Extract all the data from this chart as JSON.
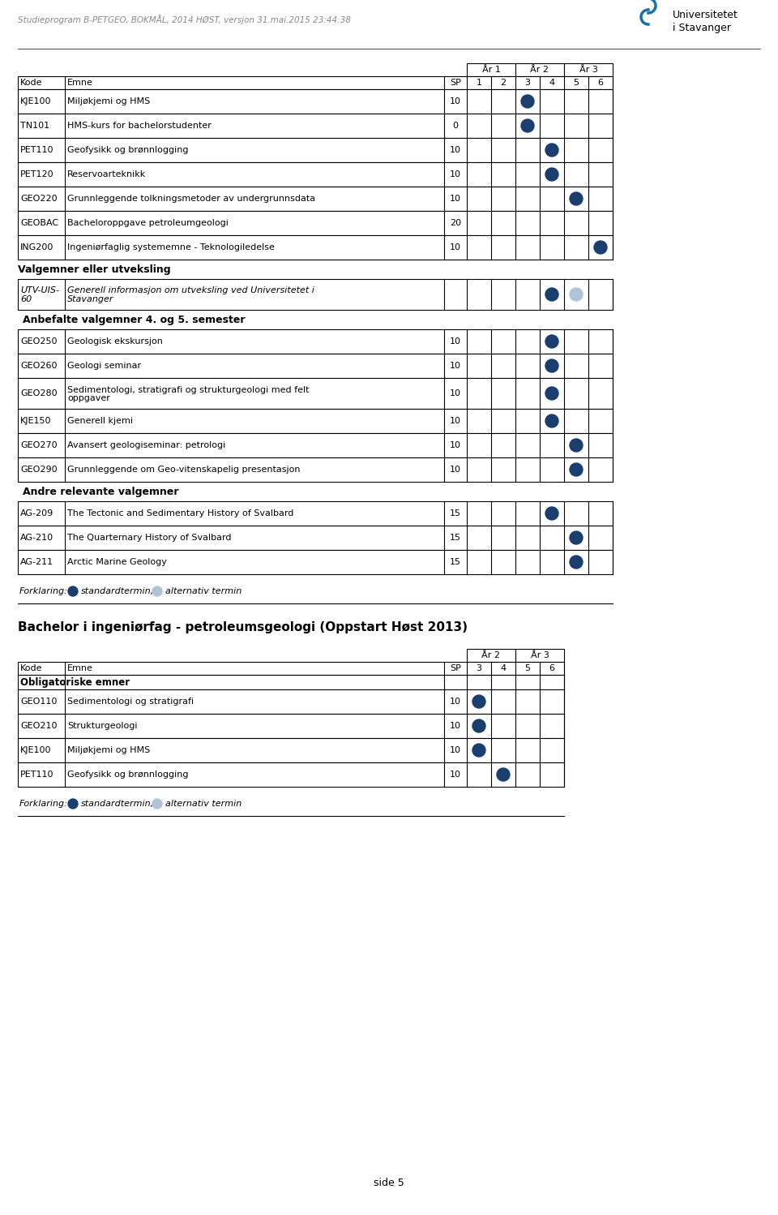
{
  "header_text": "Studieprogram B-PETGEO, BOKMÅL, 2014 HØST, versjon 31.mai.2015 23:44:38",
  "uni_name": "Universitetet\ni Stavanger",
  "page_label": "side 5",
  "col_semesters": [
    "1",
    "2",
    "3",
    "4",
    "5",
    "6"
  ],
  "col_semesters2": [
    "3",
    "4",
    "5",
    "6"
  ],
  "table1_rows": [
    {
      "kode": "KJE100",
      "emne": "Miljøkjemi og HMS",
      "sp": "10",
      "sem": [
        {
          "col": 3,
          "type": "filled"
        }
      ]
    },
    {
      "kode": "TN101",
      "emne": "HMS-kurs for bachelorstudenter",
      "sp": "0",
      "sem": [
        {
          "col": 3,
          "type": "filled"
        }
      ]
    },
    {
      "kode": "PET110",
      "emne": "Geofysikk og brønnlogging",
      "sp": "10",
      "sem": [
        {
          "col": 4,
          "type": "filled"
        }
      ]
    },
    {
      "kode": "PET120",
      "emne": "Reservoarteknikk",
      "sp": "10",
      "sem": [
        {
          "col": 4,
          "type": "filled"
        }
      ]
    },
    {
      "kode": "GEO220",
      "emne": "Grunnleggende tolkningsmetoder av undergrunnsdata",
      "sp": "10",
      "sem": [
        {
          "col": 5,
          "type": "filled"
        }
      ]
    },
    {
      "kode": "GEOBAC",
      "emne": "Bacheloroppgave petroleumgeologi",
      "sp": "20",
      "sem": []
    },
    {
      "kode": "ING200",
      "emne": "Ingeniørfaglig systememne - Teknologiledelse",
      "sp": "10",
      "sem": [
        {
          "col": 6,
          "type": "filled"
        }
      ]
    }
  ],
  "utveksling_rows": [
    {
      "kode": "UTV-UIS-\n60",
      "emne": "Generell informasjon om utveksling ved Universitetet i\nStavanger",
      "sp": "",
      "sem": [
        {
          "col": 4,
          "type": "filled"
        },
        {
          "col": 5,
          "type": "light"
        }
      ]
    }
  ],
  "anbefalte_rows": [
    {
      "kode": "GEO250",
      "emne": "Geologisk ekskursjon",
      "sp": "10",
      "sem": [
        {
          "col": 4,
          "type": "filled"
        }
      ]
    },
    {
      "kode": "GEO260",
      "emne": "Geologi seminar",
      "sp": "10",
      "sem": [
        {
          "col": 4,
          "type": "filled"
        }
      ]
    },
    {
      "kode": "GEO280",
      "emne": "Sedimentologi, stratigrafi og strukturgeologi med felt\noppgaver",
      "sp": "10",
      "sem": [
        {
          "col": 4,
          "type": "filled"
        }
      ]
    },
    {
      "kode": "KJE150",
      "emne": "Generell kjemi",
      "sp": "10",
      "sem": [
        {
          "col": 4,
          "type": "filled"
        }
      ]
    },
    {
      "kode": "GEO270",
      "emne": "Avansert geologiseminar: petrologi",
      "sp": "10",
      "sem": [
        {
          "col": 5,
          "type": "filled"
        }
      ]
    },
    {
      "kode": "GEO290",
      "emne": "Grunnleggende om Geo-vitenskapelig presentasjon",
      "sp": "10",
      "sem": [
        {
          "col": 5,
          "type": "filled"
        }
      ]
    }
  ],
  "andre_rows": [
    {
      "kode": "AG-209",
      "emne": "The Tectonic and Sedimentary History of Svalbard",
      "sp": "15",
      "sem": [
        {
          "col": 4,
          "type": "filled"
        }
      ]
    },
    {
      "kode": "AG-210",
      "emne": "The Quarternary History of Svalbard",
      "sp": "15",
      "sem": [
        {
          "col": 5,
          "type": "filled"
        }
      ]
    },
    {
      "kode": "AG-211",
      "emne": "Arctic Marine Geology",
      "sp": "15",
      "sem": [
        {
          "col": 5,
          "type": "filled"
        }
      ]
    }
  ],
  "table2_title": "Bachelor i ingeniørfag - petroleumsgeologi (Oppstart Høst 2013)",
  "table2_rows": [
    {
      "kode": "GEO110",
      "emne": "Sedimentologi og stratigrafi",
      "sp": "10",
      "sem": [
        {
          "col": 3,
          "type": "filled"
        }
      ]
    },
    {
      "kode": "GEO210",
      "emne": "Strukturgeologi",
      "sp": "10",
      "sem": [
        {
          "col": 3,
          "type": "filled"
        }
      ]
    },
    {
      "kode": "KJE100",
      "emne": "Miljøkjemi og HMS",
      "sp": "10",
      "sem": [
        {
          "col": 3,
          "type": "filled"
        }
      ]
    },
    {
      "kode": "PET110",
      "emne": "Geofysikk og brønnlogging",
      "sp": "10",
      "sem": [
        {
          "col": 4,
          "type": "filled"
        }
      ]
    }
  ],
  "colors": {
    "filled_dot": "#1a3f6f",
    "light_dot": "#b0c4d8",
    "logo_blue": "#1a6fa8"
  }
}
